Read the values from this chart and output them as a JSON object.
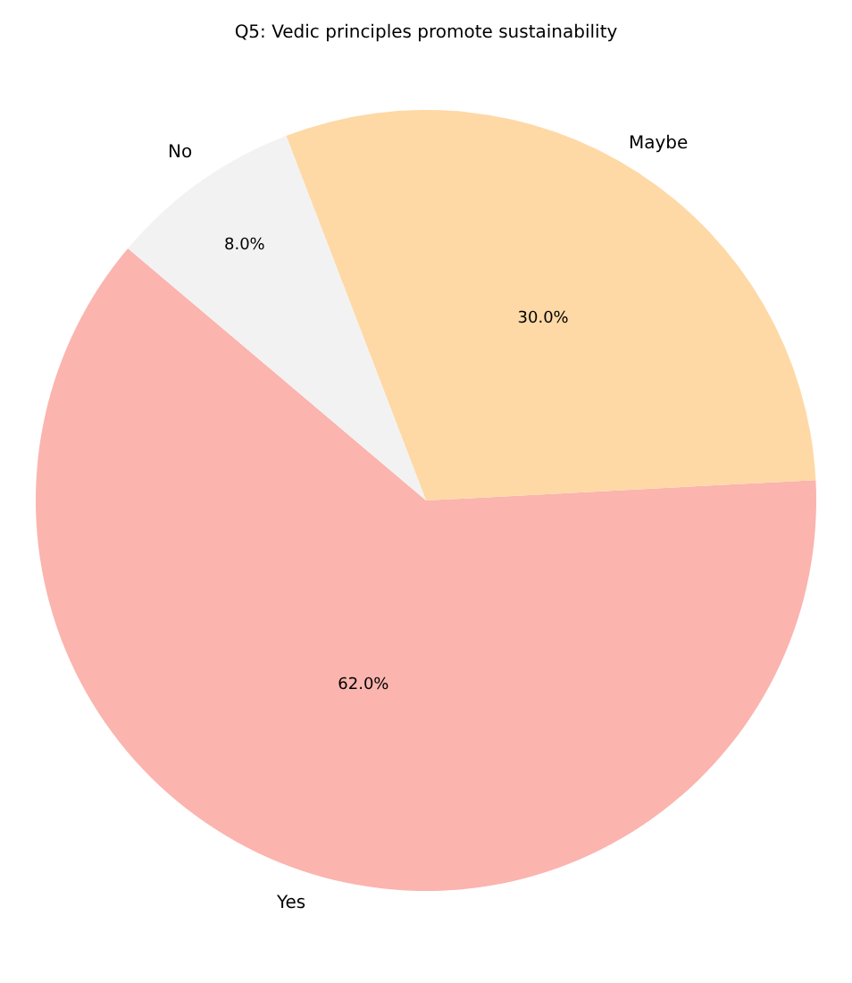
{
  "chart_data": {
    "type": "pie",
    "title": "Q5: Vedic principles promote sustainability",
    "categories": [
      "Yes",
      "Maybe",
      "No"
    ],
    "values": [
      62.0,
      30.0,
      8.0
    ],
    "value_labels": [
      "62.0%",
      "30.0%",
      "8.0%"
    ],
    "colors": [
      "#fbb4ae",
      "#fed9a6",
      "#f2f2f2"
    ]
  }
}
